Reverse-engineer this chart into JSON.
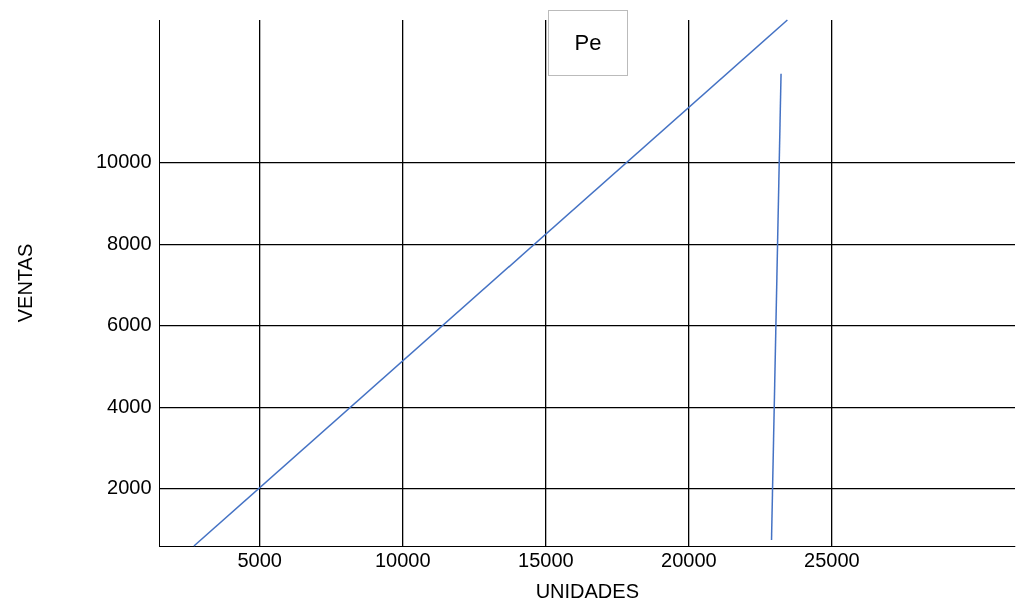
{
  "chart_data": {
    "type": "line",
    "xlabel": "UNIDADES",
    "ylabel": "VENTAS",
    "annotations": [
      "Pe"
    ],
    "xlim": [
      1500,
      31400
    ],
    "xticks": [
      5000,
      10000,
      15000,
      20000,
      25000
    ],
    "ylim": [
      600,
      13500
    ],
    "yticks": [
      2000,
      4000,
      6000,
      8000,
      10000
    ],
    "grid": true,
    "legend": false,
    "marker": "none",
    "line_style": "solid",
    "series": [
      {
        "color": "#4472c4",
        "x": [
          2700,
          23444
        ],
        "values": [
          600,
          13500
        ]
      },
      {
        "color": "#4472c4",
        "x": [
          22889,
          23222
        ],
        "values": [
          749,
          12184
        ]
      }
    ]
  }
}
